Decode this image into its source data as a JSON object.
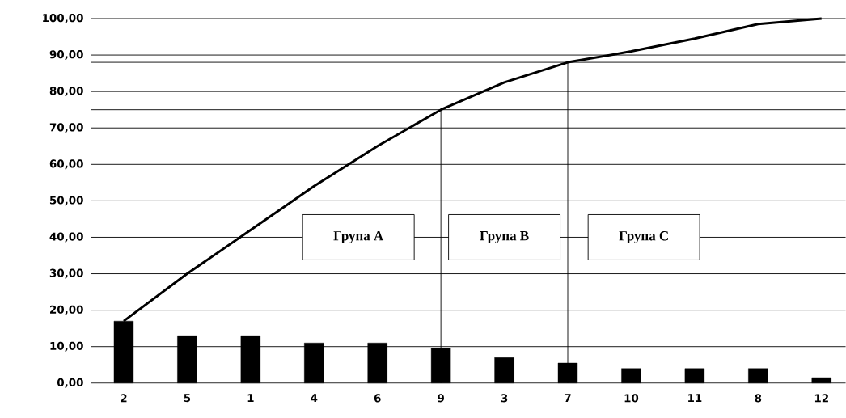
{
  "chart_data": {
    "type": "bar",
    "categories": [
      "2",
      "5",
      "1",
      "4",
      "6",
      "9",
      "3",
      "7",
      "10",
      "11",
      "8",
      "12"
    ],
    "series": [
      {
        "color": "#000000",
        "values": [
          17,
          13,
          13,
          11,
          11,
          9.5,
          7,
          5.5,
          4,
          4,
          4,
          1.5
        ]
      },
      {
        "type": "line",
        "color": "#000000",
        "values": [
          17,
          30,
          42,
          54,
          65,
          75,
          82.5,
          88,
          91,
          94.5,
          98.5,
          100
        ]
      }
    ],
    "ylim": [
      0,
      100
    ],
    "yticks": [
      {
        "value": 0,
        "label": "0,00"
      },
      {
        "value": 10,
        "label": "10,00"
      },
      {
        "value": 20,
        "label": "20,00"
      },
      {
        "value": 30,
        "label": "30,00"
      },
      {
        "value": 40,
        "label": "40,00"
      },
      {
        "value": 50,
        "label": "50,00"
      },
      {
        "value": 60,
        "label": "60,00"
      },
      {
        "value": 70,
        "label": "70,00"
      },
      {
        "value": 80,
        "label": "80,00"
      },
      {
        "value": 90,
        "label": "90,00"
      },
      {
        "value": 100,
        "label": "100,00"
      }
    ],
    "grid": "y",
    "ref_lines": [
      {
        "axis": "y",
        "value": 75
      },
      {
        "axis": "y",
        "value": 88
      },
      {
        "axis": "x",
        "value": "9"
      },
      {
        "axis": "x",
        "value": "7"
      }
    ],
    "annotations": [
      "Група A",
      "Група B",
      "Група C"
    ],
    "marker": "none"
  }
}
